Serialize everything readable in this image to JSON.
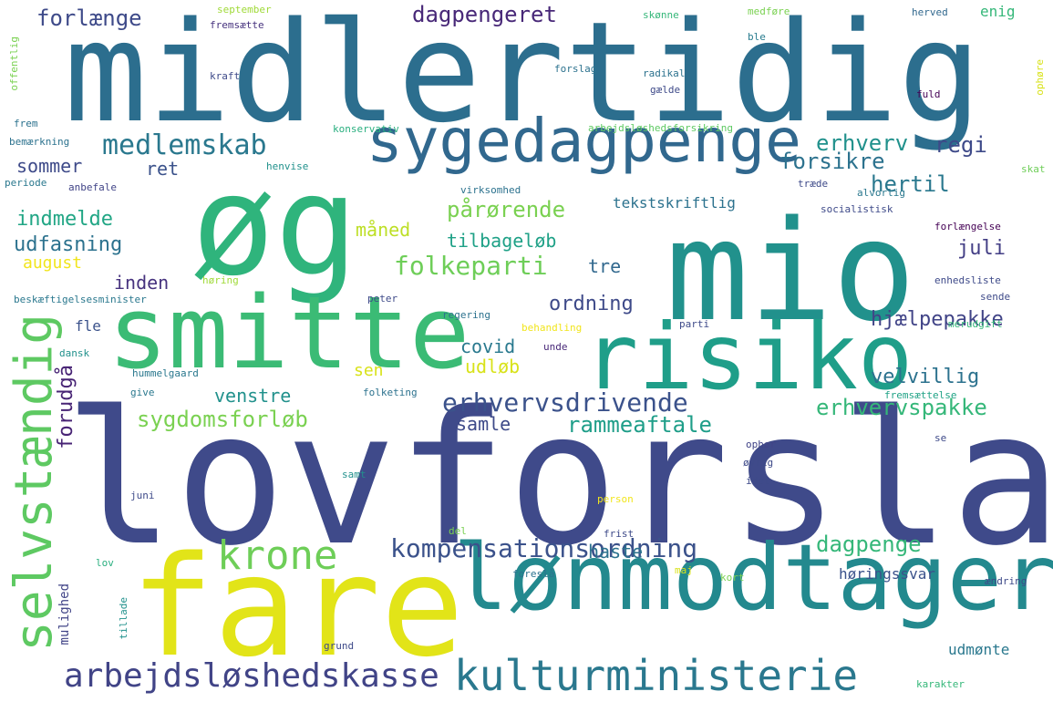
{
  "words": [
    {
      "text": "lovforslag",
      "color": "#3f4a8a"
    },
    {
      "text": "midlertidig",
      "color": "#2c6e8e"
    },
    {
      "text": "mio",
      "color": "#21918c"
    },
    {
      "text": "øg",
      "color": "#2fb47c"
    },
    {
      "text": "fare",
      "color": "#e2e418"
    },
    {
      "text": "smitte",
      "color": "#3bbb75"
    },
    {
      "text": "risiko",
      "color": "#1f9e89"
    },
    {
      "text": "lønmodtager",
      "color": "#23898e"
    },
    {
      "text": "sygedagpenge",
      "color": "#31688e"
    },
    {
      "text": "selvstændig",
      "color": "#5ec962"
    },
    {
      "text": "kulturministerie",
      "color": "#2a788e"
    },
    {
      "text": "krone",
      "color": "#6ece58"
    },
    {
      "text": "arbejdsløshedskasse",
      "color": "#414487"
    },
    {
      "text": "kompensationsordning",
      "color": "#3b528b"
    },
    {
      "text": "erhvervsdrivende",
      "color": "#3b528b"
    },
    {
      "text": "medlemskab",
      "color": "#2a788e"
    },
    {
      "text": "folkeparti",
      "color": "#6ece58"
    },
    {
      "text": "sygdomsforløb",
      "color": "#7ad151"
    },
    {
      "text": "erhvervspakke",
      "color": "#35b779"
    },
    {
      "text": "dagpengeret",
      "color": "#482878"
    },
    {
      "text": "forlænge",
      "color": "#3e4a89"
    },
    {
      "text": "pårørende",
      "color": "#7ad151"
    },
    {
      "text": "rammeaftale",
      "color": "#1f9e89"
    },
    {
      "text": "dagpenge",
      "color": "#35b779"
    },
    {
      "text": "forsikre",
      "color": "#2c728e"
    },
    {
      "text": "erhverv",
      "color": "#21918c"
    },
    {
      "text": "hertil",
      "color": "#2a788e"
    },
    {
      "text": "regi",
      "color": "#3e4a89"
    },
    {
      "text": "juli",
      "color": "#433e85"
    },
    {
      "text": "ordning",
      "color": "#3e4a89"
    },
    {
      "text": "hjælpepakke",
      "color": "#414487"
    },
    {
      "text": "velvillig",
      "color": "#2c728e"
    },
    {
      "text": "indmelde",
      "color": "#21a685"
    },
    {
      "text": "udfasning",
      "color": "#2c728e"
    },
    {
      "text": "sommer",
      "color": "#3e4a89"
    },
    {
      "text": "ret",
      "color": "#3b528b"
    },
    {
      "text": "august",
      "color": "#f1e51d"
    },
    {
      "text": "inden",
      "color": "#46327e"
    },
    {
      "text": "tre",
      "color": "#31688e"
    },
    {
      "text": "måned",
      "color": "#bddf26"
    },
    {
      "text": "tilbageløb",
      "color": "#1fa187"
    },
    {
      "text": "tekstskriftlig",
      "color": "#2c728e"
    },
    {
      "text": "covid",
      "color": "#29798e"
    },
    {
      "text": "udløb",
      "color": "#d8e219"
    },
    {
      "text": "sen",
      "color": "#d8e219"
    },
    {
      "text": "venstre",
      "color": "#21918c"
    },
    {
      "text": "samle",
      "color": "#3e4a89"
    },
    {
      "text": "fle",
      "color": "#3b528b"
    },
    {
      "text": "forudgå",
      "color": "#482475"
    },
    {
      "text": "haste",
      "color": "#2c728e"
    },
    {
      "text": "mulighed",
      "color": "#414487"
    },
    {
      "text": "høringssvar",
      "color": "#3b528b"
    },
    {
      "text": "udmønte",
      "color": "#2a788e"
    },
    {
      "text": "enig",
      "color": "#35b779"
    },
    {
      "text": "september",
      "color": "#a0da39"
    },
    {
      "text": "fremsætte",
      "color": "#46327e"
    },
    {
      "text": "skønne",
      "color": "#35b779"
    },
    {
      "text": "medføre",
      "color": "#7ad151"
    },
    {
      "text": "herved",
      "color": "#31688e"
    },
    {
      "text": "ble",
      "color": "#287c8e"
    },
    {
      "text": "forslag",
      "color": "#2c728e"
    },
    {
      "text": "radikal",
      "color": "#2c728e"
    },
    {
      "text": "gælde",
      "color": "#3e4a89"
    },
    {
      "text": "kraft",
      "color": "#3e4a89"
    },
    {
      "text": "fuld",
      "color": "#440154"
    },
    {
      "text": "offentlig",
      "color": "#7ad151"
    },
    {
      "text": "ophøre",
      "color": "#d8e219"
    },
    {
      "text": "frem",
      "color": "#2c728e"
    },
    {
      "text": "arbejdsløshedsforsikring",
      "color": "#5ec962"
    },
    {
      "text": "konservativ",
      "color": "#29af7f"
    },
    {
      "text": "bemærkning",
      "color": "#2c728e"
    },
    {
      "text": "henvise",
      "color": "#21918c"
    },
    {
      "text": "skat",
      "color": "#6ece58"
    },
    {
      "text": "periode",
      "color": "#2a788e"
    },
    {
      "text": "anbefale",
      "color": "#414487"
    },
    {
      "text": "virksomhed",
      "color": "#2c728e"
    },
    {
      "text": "træde",
      "color": "#3e4a89"
    },
    {
      "text": "alvorlig",
      "color": "#2a788e"
    },
    {
      "text": "socialistisk",
      "color": "#3e4a89"
    },
    {
      "text": "forlængelse",
      "color": "#440154"
    },
    {
      "text": "høring",
      "color": "#a0da39"
    },
    {
      "text": "enhedsliste",
      "color": "#3e4a89"
    },
    {
      "text": "sende",
      "color": "#3e4a89"
    },
    {
      "text": "beskæftigelsesminister",
      "color": "#2a788e"
    },
    {
      "text": "peter",
      "color": "#3e4a89"
    },
    {
      "text": "regering",
      "color": "#2c728e"
    },
    {
      "text": "behandling",
      "color": "#f1e51d"
    },
    {
      "text": "parti",
      "color": "#3e4a89"
    },
    {
      "text": "merudgift",
      "color": "#35b779"
    },
    {
      "text": "dansk",
      "color": "#21918c"
    },
    {
      "text": "unde",
      "color": "#482878"
    },
    {
      "text": "hummelgaard",
      "color": "#2a788e"
    },
    {
      "text": "give",
      "color": "#2a788e"
    },
    {
      "text": "folketing",
      "color": "#2c728e"
    },
    {
      "text": "fremsættelse",
      "color": "#20a386"
    },
    {
      "text": "ophør",
      "color": "#414487"
    },
    {
      "text": "se",
      "color": "#3e4a89"
    },
    {
      "text": "øvrig",
      "color": "#3e4a89"
    },
    {
      "text": "samt",
      "color": "#21918c"
    },
    {
      "text": "idet",
      "color": "#3e4a89"
    },
    {
      "text": "juni",
      "color": "#3e4a89"
    },
    {
      "text": "person",
      "color": "#f1e51d"
    },
    {
      "text": "del",
      "color": "#7ad151"
    },
    {
      "text": "frist",
      "color": "#3e4a89"
    },
    {
      "text": "lov",
      "color": "#29af7f"
    },
    {
      "text": "foreslå",
      "color": "#2c728e"
    },
    {
      "text": "maj",
      "color": "#d8e219"
    },
    {
      "text": "kort",
      "color": "#7ad151"
    },
    {
      "text": "ændring",
      "color": "#3e4a89"
    },
    {
      "text": "tillade",
      "color": "#21918c"
    },
    {
      "text": "grund",
      "color": "#3e4a89"
    },
    {
      "text": "karakter",
      "color": "#35b779"
    }
  ]
}
